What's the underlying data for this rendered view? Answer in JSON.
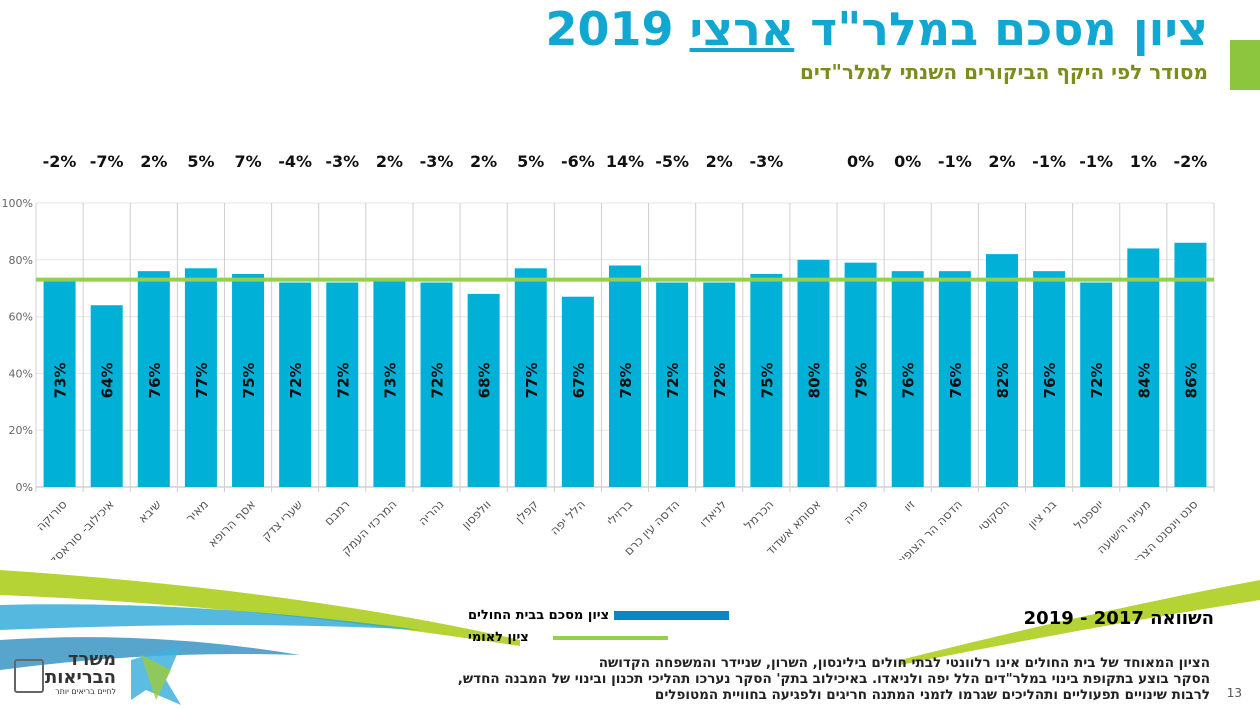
{
  "header": {
    "title_prefix": "ציון מסכם במלר\"ד ",
    "title_underlined": "ארצי",
    "title_suffix": " 2019",
    "subtitle": "מסודר לפי היקף הביקורים השנתי למלר\"דים"
  },
  "comparison_label": "השוואה  2017 - 2019",
  "legend": {
    "hospital": "ציון מסכם בבית החולים",
    "national": "ציון לאומי"
  },
  "notes": [
    "הציון המאוחד של בית החולים אינו רלוונטי לבתי חולים בילינסון, השרון, שניידר והמשפחה הקדושה",
    "הסקר בוצע בתקופת בינוי במלר\"דים הלל יפה ולניאדו. באיכילוב בתק' הסקר נערכו תהליכי תכנון ובינוי של המבנה החדש,",
    "לרבות שינויים תפעוליים ותהליכים שגרמו לזמני המתנה חריגים ולפגיעה בחוויית המטופלים"
  ],
  "page_number": "13",
  "logo": {
    "line1": "משרד",
    "line2": "הבריאות",
    "tagline": "לחיים בריאים יותר"
  },
  "colors": {
    "bar": "#00b0d6",
    "national_line": "#92d050",
    "title": "#12a7d0",
    "subtitle": "#7d8c1c"
  },
  "chart_data": {
    "type": "bar",
    "categories": [
      "סורוקה",
      "איכילוב- סוראסקי",
      "שיבא",
      "מאיר",
      "אסף הרופא",
      "שערי צדק",
      "רמבם",
      "המרכזי העמק",
      "נהריה",
      "וולפסון",
      "קפלן",
      "הלל יפה",
      "ברזילי",
      "הדסה עין כרם",
      "לניאדו",
      "הכרמל",
      "אסותא אשדוד",
      "פוריה",
      "זיו",
      "הדסה הר הצופים",
      "הסקוטי",
      "בני ציון",
      "יוספטל",
      "מעייני הישועה",
      "סנט וינסנט הצרפתי"
    ],
    "values": [
      73,
      64,
      76,
      77,
      75,
      72,
      72,
      73,
      72,
      68,
      77,
      67,
      78,
      72,
      72,
      75,
      80,
      79,
      76,
      76,
      82,
      76,
      72,
      84,
      86
    ],
    "value_labels": [
      "73%",
      "64%",
      "76%",
      "77%",
      "75%",
      "72%",
      "72%",
      "73%",
      "72%",
      "68%",
      "77%",
      "67%",
      "78%",
      "72%",
      "72%",
      "75%",
      "80%",
      "79%",
      "76%",
      "76%",
      "82%",
      "76%",
      "72%",
      "84%",
      "86%"
    ],
    "change_labels": [
      "-2%",
      "-7%",
      "2%",
      "5%",
      "7%",
      "-4%",
      "-3%",
      "2%",
      "-3%",
      "2%",
      "5%",
      "-6%",
      "14%",
      "-5%",
      "2%",
      "-3%",
      "",
      "0%",
      "0%",
      "-1%",
      "2%",
      "-1%",
      "-1%",
      "1%",
      "-2%"
    ],
    "national_value": 73,
    "ylim": [
      0,
      100
    ],
    "yticks": [
      "0%",
      "20%",
      "40%",
      "60%",
      "80%",
      "100%"
    ],
    "grid": "vertical separators",
    "legend_position": "bottom"
  }
}
